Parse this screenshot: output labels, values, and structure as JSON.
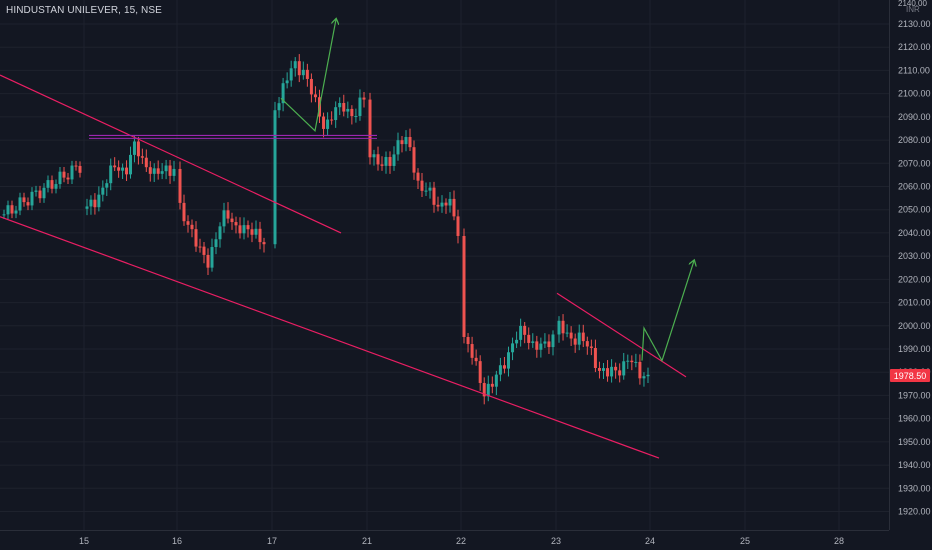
{
  "header": {
    "symbol_line": "HINDUSTAN UNILEVER, 15, NSE",
    "currency": "INR",
    "top_price": "2140.00"
  },
  "colors": {
    "background": "#131722",
    "up": "#26a69a",
    "down": "#ef5350",
    "trendline": "#e91e63",
    "breakout_line": "#9c27b0",
    "projection": "#4caf50",
    "price_label": "#f23645"
  },
  "chart_data": {
    "type": "candlestick",
    "title": "HINDUSTAN UNILEVER, 15, NSE",
    "ylabel": "INR",
    "ylim": [
      1912,
      2141
    ],
    "y_ticks": [
      2130,
      2120,
      2110,
      2100,
      2090,
      2080,
      2070,
      2060,
      2050,
      2040,
      2030,
      2020,
      2010,
      2000,
      1990,
      1980,
      1970,
      1960,
      1950,
      1940,
      1930,
      1920
    ],
    "x_ticks": [
      "15",
      "16",
      "17",
      "21",
      "22",
      "23",
      "24",
      "25",
      "28"
    ],
    "last_price": "1978.50",
    "session_closes": [
      [
        2050,
        2055,
        2062,
        2070,
        2066,
        2078,
        2070,
        2064,
        2069,
        2066
      ],
      [
        2050,
        2044,
        2032,
        2028,
        2040,
        2049,
        2043,
        2040,
        2042,
        2035
      ],
      [
        2094,
        2105,
        2112,
        2110,
        2096,
        2086,
        2092,
        2095,
        2090,
        2098
      ],
      [
        2076,
        2068,
        2071,
        2080,
        2078,
        2060,
        2057,
        2052,
        2054,
        2041
      ],
      [
        1995,
        1985,
        1972,
        1975,
        1984,
        1993,
        1998,
        1992,
        1990,
        1996
      ],
      [
        2000,
        1994,
        1996,
        1990,
        1982,
        1979,
        1981,
        1986,
        1980,
        1978.5
      ]
    ],
    "series": [
      {
        "name": "",
        "kind": "trendline",
        "points": [
          [
            "14 open",
            2108
          ],
          [
            "16 late",
            2040
          ]
        ]
      },
      {
        "name": "",
        "kind": "trendline",
        "points": [
          [
            "14 open",
            2047
          ],
          [
            "24 late",
            1943
          ]
        ]
      },
      {
        "name": "",
        "kind": "resistance",
        "points": [
          [
            "15 open",
            2082
          ],
          [
            "21 open",
            2082
          ]
        ]
      },
      {
        "name": "",
        "kind": "trendline",
        "points": [
          [
            "23 open",
            2014
          ],
          [
            "24 late",
            1978
          ]
        ]
      },
      {
        "name": "",
        "kind": "projection",
        "points": [
          [
            "17 open",
            2098
          ],
          [
            "17 mid",
            2084
          ],
          [
            "17 late",
            2132
          ]
        ]
      },
      {
        "name": "",
        "kind": "projection",
        "points": [
          [
            "24 open",
            1985
          ],
          [
            "24 mid",
            1999
          ],
          [
            "24 late",
            2028
          ]
        ]
      }
    ]
  }
}
